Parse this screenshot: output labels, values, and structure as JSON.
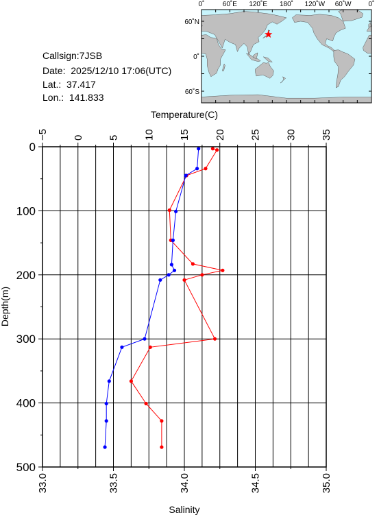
{
  "station": {
    "callsign": "Callsign:7JSB",
    "date": "Date:  2025/12/10 17:06(UTC)",
    "lat": "Lat.:  37.417",
    "lon": "Lon.:  141.833"
  },
  "map": {
    "top_ticks": [
      "0˚",
      "60˚E",
      "120˚E",
      "180˚",
      "120˚W",
      "60˚W",
      "0˚"
    ],
    "left_ticks": [
      "60˚N",
      "0˚",
      "60˚S"
    ],
    "ocean_color": "#c8f4fc",
    "land_color": "#bfbfbf",
    "marker_icon": "star-icon",
    "marker_color": "#ff0000"
  },
  "chart_data": {
    "type": "line",
    "ylabel": "Depth(m)",
    "ylim": [
      500,
      0
    ],
    "yticks": [
      "0",
      "100",
      "200",
      "300",
      "400",
      "500"
    ],
    "top_axis": {
      "label": "Temperature(C)",
      "range": [
        -5,
        35
      ],
      "ticks": [
        "−5",
        "0",
        "5",
        "10",
        "15",
        "20",
        "25",
        "30",
        "35"
      ]
    },
    "bottom_axis": {
      "label": "Salinity",
      "range": [
        33.0,
        35.0
      ],
      "ticks": [
        "33.0",
        "33.5",
        "34.0",
        "34.5",
        "35.0"
      ]
    },
    "grid": true,
    "series": [
      {
        "variable": "temperature",
        "axis": "top",
        "color": "#ff0000",
        "points": [
          {
            "x": 19.0,
            "depth": 3
          },
          {
            "x": 19.6,
            "depth": 5
          },
          {
            "x": 18.0,
            "depth": 34
          },
          {
            "x": 15.3,
            "depth": 45
          },
          {
            "x": 12.9,
            "depth": 99
          },
          {
            "x": 13.1,
            "depth": 146
          },
          {
            "x": 16.2,
            "depth": 183
          },
          {
            "x": 20.4,
            "depth": 193
          },
          {
            "x": 17.5,
            "depth": 200
          },
          {
            "x": 15.0,
            "depth": 208
          },
          {
            "x": 19.3,
            "depth": 300
          },
          {
            "x": 10.2,
            "depth": 313
          },
          {
            "x": 7.5,
            "depth": 366
          },
          {
            "x": 9.6,
            "depth": 401
          },
          {
            "x": 11.8,
            "depth": 428
          },
          {
            "x": 11.8,
            "depth": 469
          }
        ]
      },
      {
        "variable": "salinity",
        "axis": "bottom",
        "color": "#0000ff",
        "points": [
          {
            "x": 34.1,
            "depth": 3
          },
          {
            "x": 34.09,
            "depth": 34
          },
          {
            "x": 34.01,
            "depth": 45
          },
          {
            "x": 33.94,
            "depth": 101
          },
          {
            "x": 33.92,
            "depth": 146
          },
          {
            "x": 33.91,
            "depth": 184
          },
          {
            "x": 33.93,
            "depth": 193
          },
          {
            "x": 33.89,
            "depth": 200
          },
          {
            "x": 33.83,
            "depth": 208
          },
          {
            "x": 33.72,
            "depth": 300
          },
          {
            "x": 33.56,
            "depth": 313
          },
          {
            "x": 33.47,
            "depth": 366
          },
          {
            "x": 33.45,
            "depth": 401
          },
          {
            "x": 33.45,
            "depth": 428
          },
          {
            "x": 33.44,
            "depth": 469
          }
        ]
      }
    ]
  }
}
